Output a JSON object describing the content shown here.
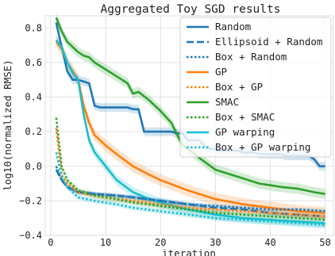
{
  "chart_data": {
    "type": "line",
    "title": "Aggregated Toy SGD results",
    "xlabel": "iteration",
    "ylabel": "log10(normalized RMSE)",
    "xlim": [
      -1,
      51.5
    ],
    "ylim": [
      -0.4,
      0.87
    ],
    "xticks": [
      0,
      10,
      20,
      30,
      40,
      50
    ],
    "yticks": [
      -0.4,
      -0.2,
      0.0,
      0.2,
      0.4,
      0.6,
      0.8
    ],
    "ytick_labels": [
      "−0.4",
      "−0.2",
      "0.0",
      "0.2",
      "0.4",
      "0.6",
      "0.8"
    ],
    "grid": true,
    "legend_position": "top-right",
    "series": [
      {
        "name": "Random",
        "color": "#1f77b4",
        "dash": "solid",
        "x": [
          1,
          2,
          3,
          4,
          5,
          6,
          7,
          8,
          9,
          10,
          11,
          12,
          13,
          14,
          15,
          16,
          17,
          18,
          19,
          20,
          21,
          22,
          23,
          24,
          25,
          26,
          27,
          28,
          29,
          30,
          31,
          32,
          33,
          34,
          35,
          36,
          37,
          38,
          39,
          40,
          41,
          42,
          43,
          44,
          45,
          46,
          47,
          48,
          49,
          50
        ],
        "y": [
          0.83,
          0.69,
          0.55,
          0.5,
          0.5,
          0.49,
          0.48,
          0.35,
          0.34,
          0.34,
          0.34,
          0.34,
          0.34,
          0.34,
          0.33,
          0.33,
          0.2,
          0.2,
          0.2,
          0.2,
          0.2,
          0.2,
          0.19,
          0.19,
          0.15,
          0.15,
          0.15,
          0.12,
          0.1,
          0.1,
          0.09,
          0.09,
          0.09,
          0.09,
          0.08,
          0.08,
          0.08,
          0.07,
          0.07,
          0.07,
          0.07,
          0.07,
          0.06,
          0.06,
          0.06,
          0.06,
          0.06,
          0.04,
          0.0,
          0.0
        ],
        "band": 0.025
      },
      {
        "name": "Ellipsoid + Random",
        "color": "#1f77b4",
        "dash": "dashed",
        "x": [
          1,
          2,
          3,
          5,
          8,
          12,
          15,
          20,
          25,
          30,
          35,
          40,
          45,
          50
        ],
        "y": [
          -0.02,
          -0.08,
          -0.12,
          -0.15,
          -0.16,
          -0.17,
          -0.18,
          -0.2,
          -0.22,
          -0.24,
          -0.25,
          -0.27,
          -0.28,
          -0.29
        ],
        "band": 0.012
      },
      {
        "name": "Box + Random",
        "color": "#1f77b4",
        "dash": "dotted",
        "x": [
          1,
          2,
          3,
          5,
          8,
          12,
          15,
          20,
          25,
          30,
          35,
          40,
          45,
          50
        ],
        "y": [
          0.0,
          -0.08,
          -0.12,
          -0.15,
          -0.16,
          -0.17,
          -0.18,
          -0.2,
          -0.22,
          -0.23,
          -0.24,
          -0.25,
          -0.25,
          -0.26
        ],
        "band": 0.012
      },
      {
        "name": "GP",
        "color": "#ff7f0e",
        "dash": "solid",
        "x": [
          1,
          2,
          3,
          4,
          5,
          6,
          7,
          8,
          10,
          12,
          15,
          18,
          20,
          25,
          30,
          35,
          40,
          45,
          50
        ],
        "y": [
          0.72,
          0.68,
          0.6,
          0.55,
          0.5,
          0.35,
          0.25,
          0.18,
          0.12,
          0.07,
          0.0,
          -0.05,
          -0.08,
          -0.14,
          -0.19,
          -0.22,
          -0.24,
          -0.26,
          -0.27
        ],
        "band": 0.035
      },
      {
        "name": "Box + GP",
        "color": "#ff7f0e",
        "dash": "dotted",
        "x": [
          1,
          2,
          3,
          5,
          8,
          12,
          15,
          20,
          25,
          30,
          35,
          40,
          45,
          50
        ],
        "y": [
          0.22,
          -0.05,
          -0.1,
          -0.15,
          -0.17,
          -0.19,
          -0.2,
          -0.22,
          -0.24,
          -0.25,
          -0.26,
          -0.27,
          -0.28,
          -0.29
        ],
        "band": 0.015
      },
      {
        "name": "SMAC",
        "color": "#2ca02c",
        "dash": "solid",
        "x": [
          1,
          2,
          3,
          4,
          5,
          6,
          7,
          8,
          10,
          12,
          14,
          15,
          16,
          18,
          20,
          22,
          24,
          25,
          27,
          30,
          32,
          35,
          38,
          40,
          42,
          45,
          48,
          50
        ],
        "y": [
          0.86,
          0.78,
          0.72,
          0.69,
          0.66,
          0.64,
          0.63,
          0.6,
          0.56,
          0.52,
          0.48,
          0.42,
          0.43,
          0.38,
          0.32,
          0.25,
          0.12,
          0.1,
          0.05,
          -0.02,
          -0.04,
          -0.07,
          -0.1,
          -0.11,
          -0.12,
          -0.13,
          -0.15,
          -0.16
        ],
        "band": 0.03
      },
      {
        "name": "Box + SMAC",
        "color": "#2ca02c",
        "dash": "dotted",
        "x": [
          1,
          2,
          3,
          5,
          8,
          12,
          15,
          20,
          25,
          30,
          35,
          40,
          45,
          50
        ],
        "y": [
          0.28,
          0.0,
          -0.08,
          -0.14,
          -0.17,
          -0.19,
          -0.21,
          -0.23,
          -0.25,
          -0.27,
          -0.28,
          -0.29,
          -0.3,
          -0.31
        ],
        "band": 0.015
      },
      {
        "name": "GP warping",
        "color": "#17becf",
        "dash": "solid",
        "x": [
          1,
          2,
          3,
          4,
          5,
          6,
          7,
          8,
          10,
          12,
          15,
          18,
          20,
          25,
          30,
          35,
          40,
          45,
          50
        ],
        "y": [
          0.73,
          0.69,
          0.6,
          0.54,
          0.5,
          0.3,
          0.15,
          0.08,
          0.0,
          -0.08,
          -0.15,
          -0.19,
          -0.21,
          -0.25,
          -0.28,
          -0.3,
          -0.31,
          -0.32,
          -0.33
        ],
        "band": 0.03
      },
      {
        "name": "Box + GP warping",
        "color": "#17becf",
        "dash": "dotted",
        "x": [
          1,
          2,
          3,
          5,
          8,
          12,
          15,
          20,
          25,
          30,
          35,
          40,
          45,
          50
        ],
        "y": [
          0.08,
          -0.06,
          -0.12,
          -0.18,
          -0.2,
          -0.22,
          -0.24,
          -0.26,
          -0.28,
          -0.3,
          -0.31,
          -0.32,
          -0.33,
          -0.34
        ],
        "band": 0.015
      }
    ]
  }
}
